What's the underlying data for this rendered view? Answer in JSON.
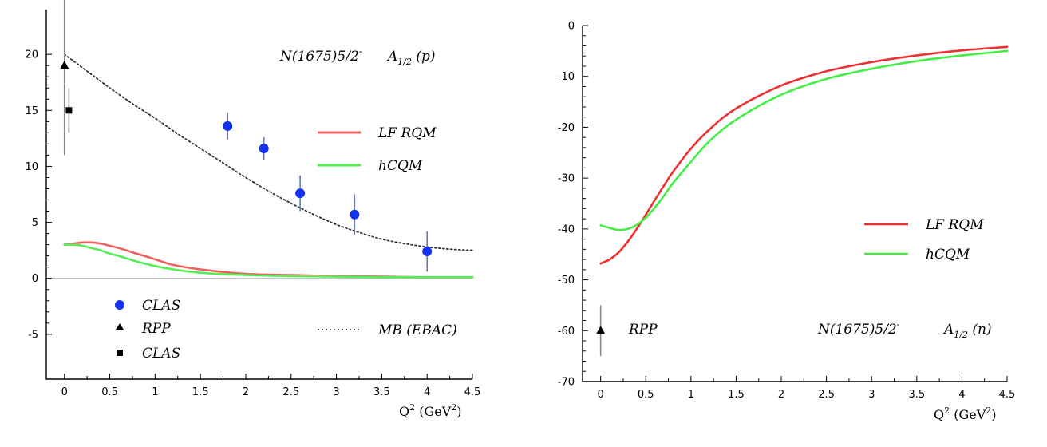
{
  "chart_data": [
    {
      "type": "scatter",
      "title": "A_1/2 (p)",
      "annotation": "N(1675)5/2⁻",
      "title_main": "A",
      "title_sub": "1/2",
      "title_tail": " (p)",
      "state_main": "N(1675)5/2",
      "state_sup": "-",
      "xlabel": "Q² (GeV²)",
      "xlabel_main": "Q",
      "xlabel_sup1": "2",
      "xlabel_mid": " (GeV",
      "xlabel_sup2": "2",
      "xlabel_tail": ")",
      "ylabel": "",
      "xlim": [
        -0.2,
        4.5
      ],
      "ylim": [
        -9,
        24
      ],
      "xticks": [
        0,
        0.5,
        1,
        1.5,
        2,
        2.5,
        3,
        3.5,
        4,
        4.5
      ],
      "xtick_labels": [
        "0",
        "0.5",
        "1",
        "1.5",
        "2",
        "2.5",
        "3",
        "3.5",
        "4",
        "4.5"
      ],
      "yticks": [
        -5,
        0,
        5,
        10,
        15,
        20
      ],
      "ytick_labels": [
        "-5",
        "0",
        "5",
        "10",
        "15",
        "20"
      ],
      "zero_line": true,
      "series": [
        {
          "name": "LF RQM",
          "kind": "line",
          "color": "#f06060",
          "x": [
            0,
            0.1,
            0.2,
            0.3,
            0.4,
            0.5,
            0.6,
            0.8,
            1.0,
            1.2,
            1.5,
            2.0,
            2.5,
            3.0,
            3.5,
            4.0,
            4.5
          ],
          "y": [
            3.0,
            3.1,
            3.2,
            3.2,
            3.1,
            2.9,
            2.7,
            2.2,
            1.7,
            1.2,
            0.8,
            0.4,
            0.3,
            0.2,
            0.15,
            0.1,
            0.1
          ]
        },
        {
          "name": "hCQM",
          "kind": "line",
          "color": "#55ee55",
          "x": [
            0,
            0.1,
            0.2,
            0.3,
            0.4,
            0.5,
            0.6,
            0.8,
            1.0,
            1.2,
            1.5,
            2.0,
            2.5,
            3.0,
            3.5,
            4.0,
            4.5
          ],
          "y": [
            3.0,
            3.0,
            2.9,
            2.7,
            2.5,
            2.2,
            2.0,
            1.5,
            1.1,
            0.8,
            0.5,
            0.3,
            0.2,
            0.15,
            0.1,
            0.1,
            0.1
          ]
        },
        {
          "name": "MB (EBAC)",
          "kind": "line",
          "color": "#333333",
          "dash": "2,3",
          "x": [
            0,
            0.25,
            0.5,
            0.75,
            1.0,
            1.25,
            1.5,
            1.75,
            2.0,
            2.25,
            2.5,
            2.75,
            3.0,
            3.25,
            3.5,
            3.75,
            4.0,
            4.25,
            4.5
          ],
          "y": [
            20.0,
            18.5,
            17.0,
            15.6,
            14.3,
            12.9,
            11.6,
            10.3,
            9.0,
            7.8,
            6.7,
            5.7,
            4.8,
            4.1,
            3.5,
            3.1,
            2.8,
            2.6,
            2.5
          ]
        },
        {
          "name": "CLAS",
          "kind": "points",
          "marker": "circle",
          "color": "#1533ee",
          "x": [
            1.8,
            2.2,
            2.6,
            3.2,
            4.0
          ],
          "y": [
            13.6,
            11.6,
            7.6,
            5.7,
            2.4
          ],
          "err": [
            1.2,
            1.0,
            1.6,
            1.8,
            1.8
          ]
        },
        {
          "name": "RPP",
          "kind": "points",
          "marker": "triangle",
          "color": "#000000",
          "x": [
            0.0
          ],
          "y": [
            19.0
          ],
          "err": [
            8.0
          ]
        },
        {
          "name": "CLAS",
          "kind": "points",
          "marker": "square",
          "color": "#000000",
          "x": [
            0.05
          ],
          "y": [
            15.0
          ],
          "err": [
            2.0
          ]
        }
      ],
      "legend": [
        {
          "label": "LF RQM",
          "color": "#f06060",
          "type": "line"
        },
        {
          "label": "hCQM",
          "color": "#55ee55",
          "type": "line"
        },
        {
          "label": "CLAS",
          "color": "#1533ee",
          "type": "circle"
        },
        {
          "label": "RPP",
          "color": "#000000",
          "type": "triangle"
        },
        {
          "label": "CLAS",
          "color": "#000000",
          "type": "square"
        },
        {
          "label": "MB (EBAC)",
          "color": "#333333",
          "type": "dashline"
        }
      ]
    },
    {
      "type": "line",
      "title": "A_1/2 (n)",
      "annotation": "N(1675)5/2⁻",
      "title_main": "A",
      "title_sub": "1/2",
      "title_tail": " (n)",
      "state_main": "N(1675)5/2",
      "state_sup": "-",
      "xlabel": "Q² (GeV²)",
      "xlabel_main": "Q",
      "xlabel_sup1": "2",
      "xlabel_mid": " (GeV",
      "xlabel_sup2": "2",
      "xlabel_tail": ")",
      "ylabel": "",
      "xlim": [
        -0.2,
        4.5
      ],
      "ylim": [
        -70,
        0
      ],
      "xticks": [
        0,
        0.5,
        1,
        1.5,
        2,
        2.5,
        3,
        3.5,
        4,
        4.5
      ],
      "xtick_labels": [
        "0",
        "0.5",
        "1",
        "1.5",
        "2",
        "2.5",
        "3",
        "3.5",
        "4",
        "4.5"
      ],
      "yticks": [
        -70,
        -60,
        -50,
        -40,
        -30,
        -20,
        -10,
        0
      ],
      "ytick_labels": [
        "-70",
        "-60",
        "-50",
        "-40",
        "-30",
        "-20",
        "-10",
        "0"
      ],
      "zero_line": false,
      "series": [
        {
          "name": "LF RQM",
          "kind": "line",
          "color": "#ee3030",
          "x": [
            0,
            0.1,
            0.2,
            0.3,
            0.4,
            0.5,
            0.6,
            0.7,
            0.8,
            1.0,
            1.2,
            1.5,
            2.0,
            2.5,
            3.0,
            3.5,
            4.0,
            4.5
          ],
          "y": [
            -46.8,
            -46.0,
            -44.6,
            -42.5,
            -40.0,
            -37.2,
            -34.3,
            -31.5,
            -28.8,
            -24.2,
            -20.5,
            -16.3,
            -11.8,
            -9.0,
            -7.2,
            -5.9,
            -4.9,
            -4.2
          ]
        },
        {
          "name": "hCQM",
          "kind": "line",
          "color": "#44ee44",
          "x": [
            0,
            0.1,
            0.2,
            0.3,
            0.4,
            0.5,
            0.6,
            0.7,
            0.8,
            1.0,
            1.2,
            1.5,
            2.0,
            2.5,
            3.0,
            3.5,
            4.0,
            4.5
          ],
          "y": [
            -39.3,
            -39.8,
            -40.2,
            -40.0,
            -39.2,
            -37.8,
            -35.8,
            -33.5,
            -31.0,
            -26.8,
            -22.8,
            -18.5,
            -13.6,
            -10.5,
            -8.5,
            -7.0,
            -5.9,
            -5.0
          ]
        },
        {
          "name": "RPP",
          "kind": "points",
          "marker": "triangle",
          "color": "#000000",
          "x": [
            0.0
          ],
          "y": [
            -60.0
          ],
          "err": [
            5.0
          ]
        }
      ],
      "legend": [
        {
          "label": "LF RQM",
          "color": "#ee3030",
          "type": "line"
        },
        {
          "label": "hCQM",
          "color": "#44ee44",
          "type": "line"
        },
        {
          "label": "RPP",
          "color": "#000000",
          "type": "triangle"
        }
      ]
    }
  ]
}
